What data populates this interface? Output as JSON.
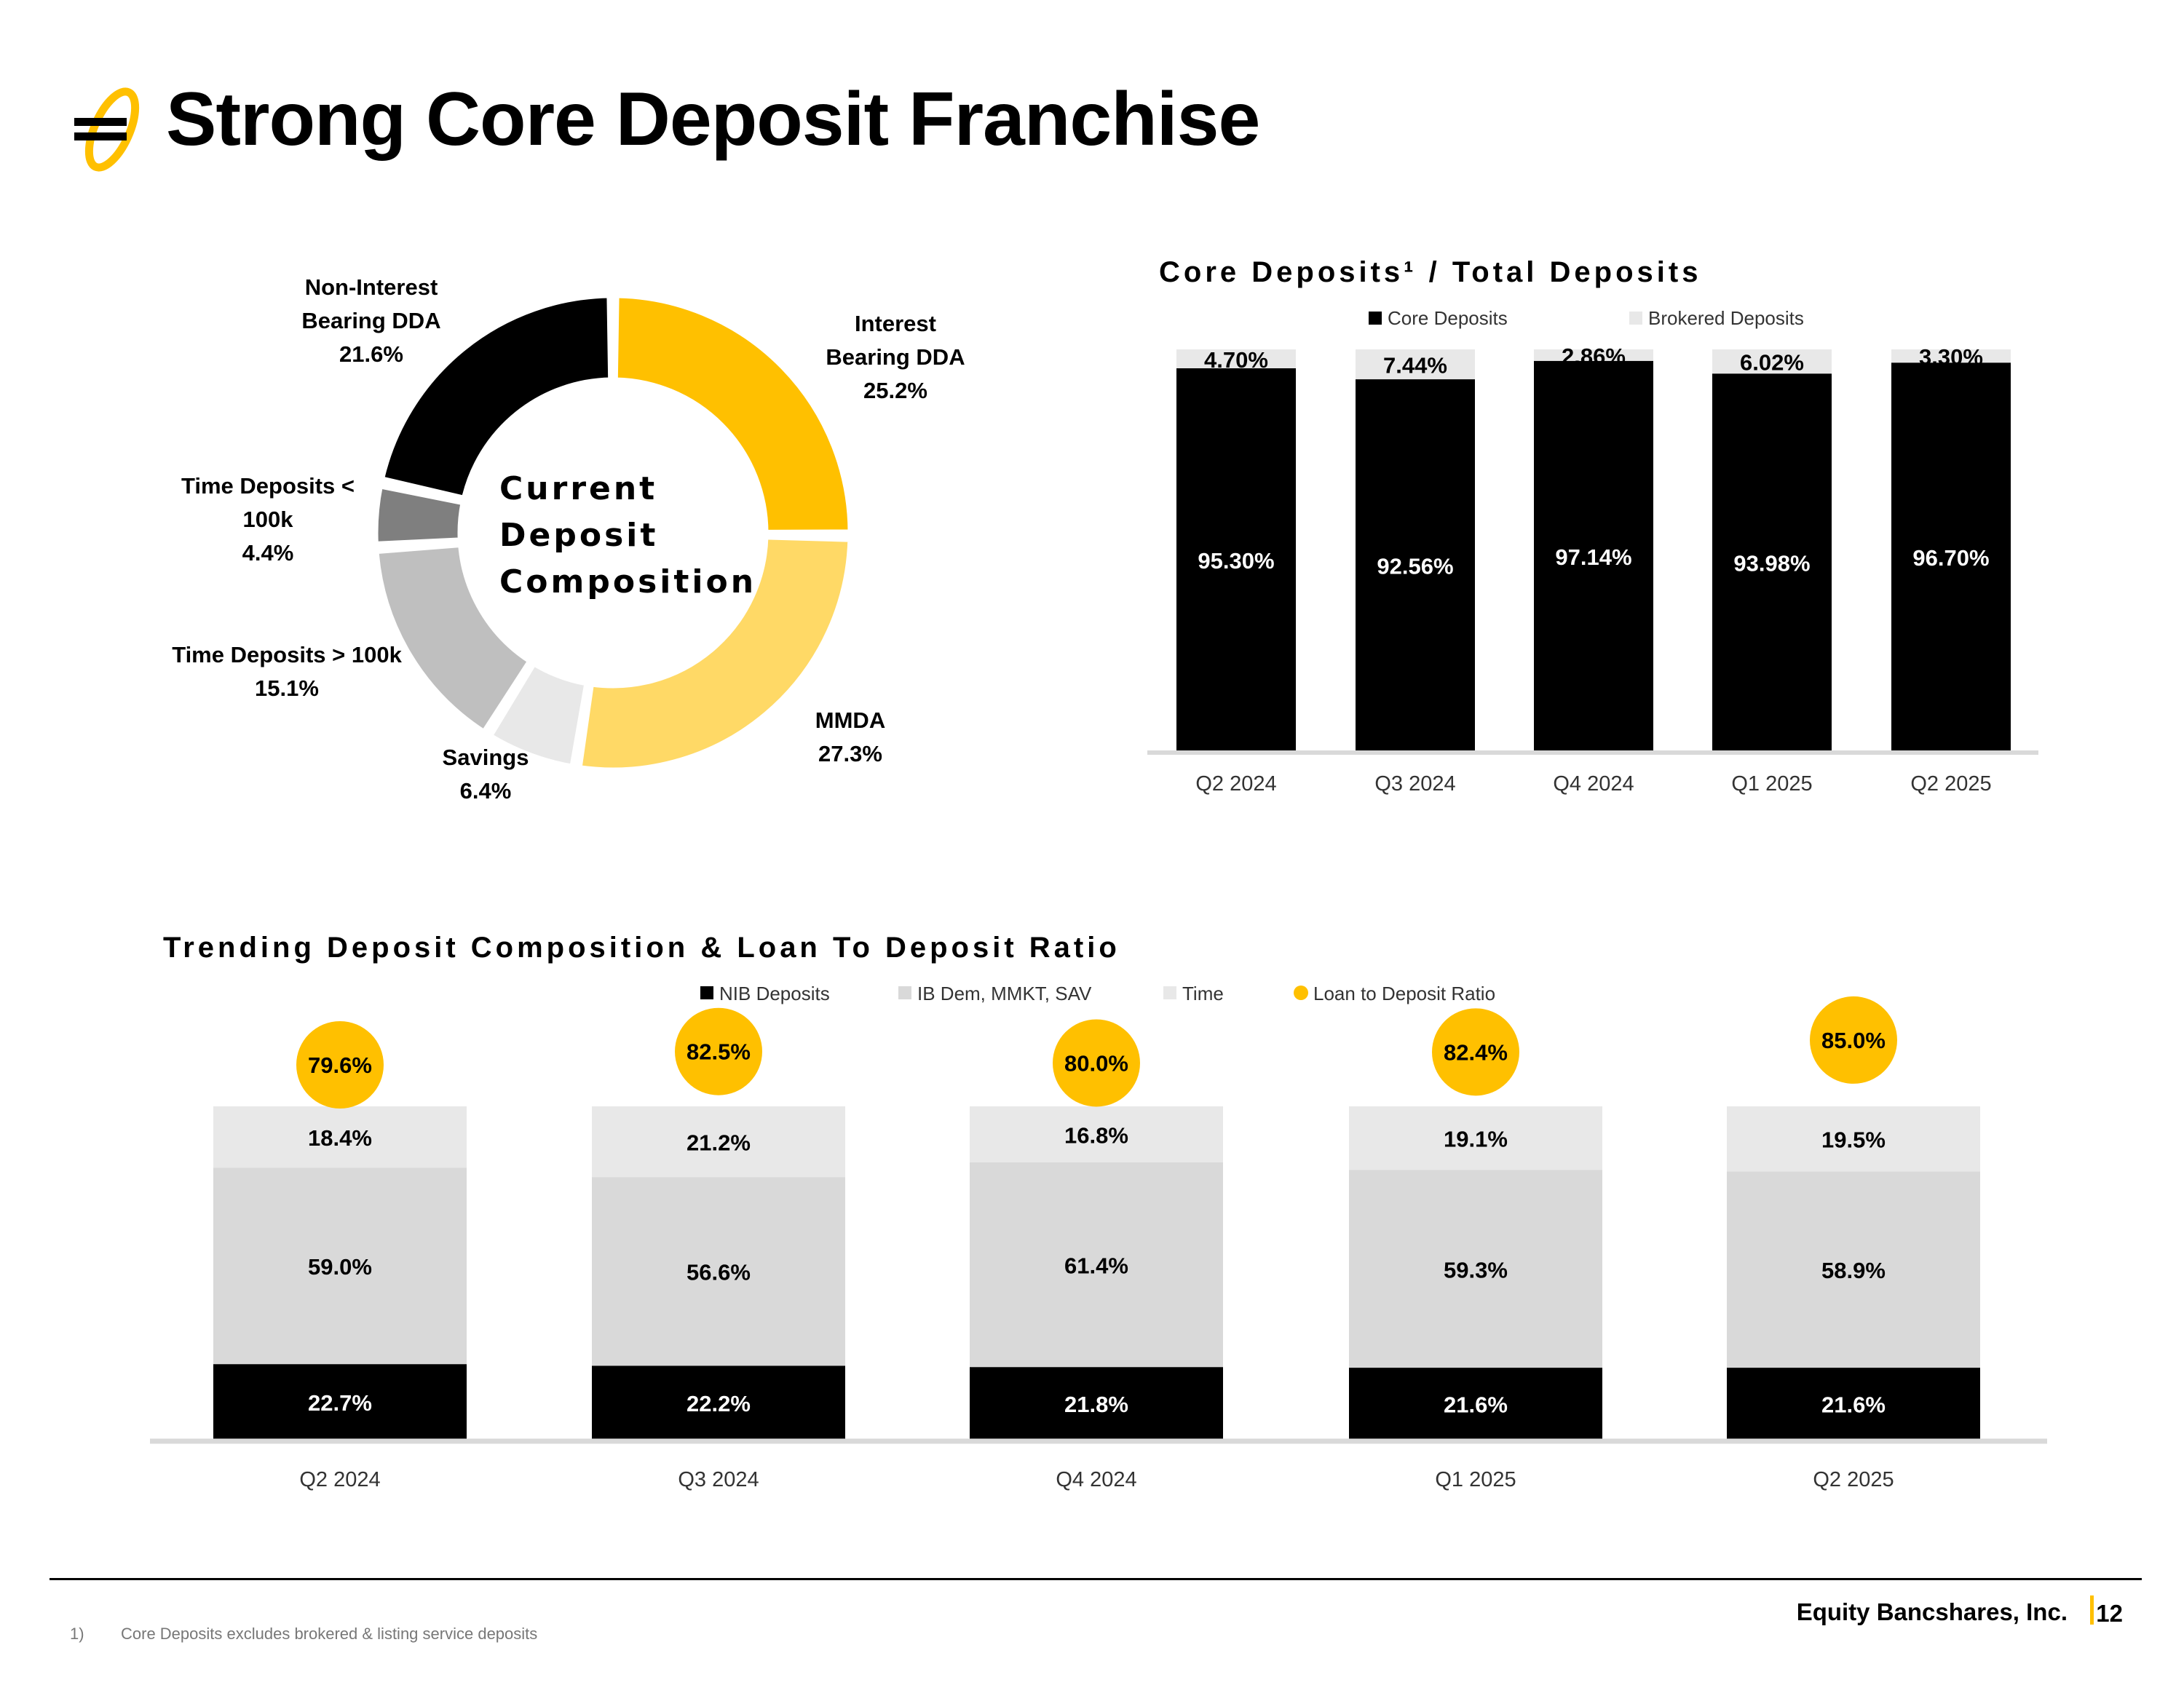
{
  "page": {
    "title": "Strong Core Deposit Franchise"
  },
  "colors": {
    "gold": "#FFC000",
    "light_gold": "#FFD966",
    "black": "#000000",
    "dark_gray": "#7F7F7F",
    "mid_gray": "#BFBFBF",
    "light_gray": "#E8E8E8",
    "ib_gray": "#D9D9D9",
    "axis": "#D9D9D9"
  },
  "donut": {
    "center_lines": [
      "Current",
      "Deposit",
      "Composition"
    ]
  },
  "core_chart": {
    "title": "Core Deposits¹ / Total Deposits"
  },
  "trend_chart": {
    "title": "Trending Deposit Composition & Loan To Deposit Ratio"
  },
  "chart_data": [
    {
      "type": "pie",
      "subtype": "donut",
      "slices": [
        {
          "label_lines": [
            "Interest",
            "Bearing DDA",
            "25.2%"
          ],
          "name": "Interest Bearing DDA",
          "value": 25.2,
          "color": "#FFC000"
        },
        {
          "label_lines": [
            "MMDA",
            "27.3%"
          ],
          "name": "MMDA",
          "value": 27.3,
          "color": "#FFD966"
        },
        {
          "label_lines": [
            "Savings",
            "6.4%"
          ],
          "name": "Savings",
          "value": 6.4,
          "color": "#E8E8E8"
        },
        {
          "label_lines": [
            "Time Deposits > 100k",
            "15.1%"
          ],
          "name": "Time Deposits > 100k",
          "value": 15.1,
          "color": "#BFBFBF"
        },
        {
          "label_lines": [
            "Time Deposits <",
            "100k",
            "4.4%"
          ],
          "name": "Time Deposits < 100k",
          "value": 4.4,
          "color": "#7F7F7F"
        },
        {
          "label_lines": [
            "Non-Interest",
            "Bearing DDA",
            "21.6%"
          ],
          "name": "Non-Interest Bearing DDA",
          "value": 21.6,
          "color": "#000000"
        }
      ]
    },
    {
      "type": "bar",
      "stacked": true,
      "percent_stacked": true,
      "title": "Core Deposits¹ / Total Deposits",
      "categories": [
        "Q2 2024",
        "Q3 2024",
        "Q4 2024",
        "Q1 2025",
        "Q2 2025"
      ],
      "series": [
        {
          "name": "Core Deposits",
          "values": [
            95.3,
            92.56,
            97.14,
            93.98,
            96.7
          ],
          "labels": [
            "95.30%",
            "92.56%",
            "97.14%",
            "93.98%",
            "96.70%"
          ],
          "color": "#000000"
        },
        {
          "name": "Brokered Deposits",
          "values": [
            4.7,
            7.44,
            2.86,
            6.02,
            3.3
          ],
          "labels": [
            "4.70%",
            "7.44%",
            "2.86%",
            "6.02%",
            "3.30%"
          ],
          "color": "#E8E8E8"
        }
      ],
      "legend": "top",
      "grid": false
    },
    {
      "type": "bar",
      "stacked": true,
      "percent_stacked": true,
      "title": "Trending Deposit Composition & Loan To Deposit Ratio",
      "categories": [
        "Q2 2024",
        "Q3 2024",
        "Q4 2024",
        "Q1 2025",
        "Q2 2025"
      ],
      "series": [
        {
          "name": "NIB Deposits",
          "values": [
            22.7,
            22.2,
            21.8,
            21.6,
            21.6
          ],
          "labels": [
            "22.7%",
            "22.2%",
            "21.8%",
            "21.6%",
            "21.6%"
          ],
          "color": "#000000"
        },
        {
          "name": "IB Dem, MMKT, SAV",
          "values": [
            59.0,
            56.6,
            61.4,
            59.3,
            58.9
          ],
          "labels": [
            "59.0%",
            "56.6%",
            "61.4%",
            "59.3%",
            "58.9%"
          ],
          "color": "#D9D9D9"
        },
        {
          "name": "Time",
          "values": [
            18.4,
            21.2,
            16.8,
            19.1,
            19.5
          ],
          "labels": [
            "18.4%",
            "21.2%",
            "16.8%",
            "19.1%",
            "19.5%"
          ],
          "color": "#E8E8E8"
        }
      ],
      "line_series": {
        "name": "Loan to Deposit Ratio",
        "values": [
          79.6,
          82.5,
          80.0,
          82.4,
          85.0
        ],
        "labels": [
          "79.6%",
          "82.5%",
          "80.0%",
          "82.4%",
          "85.0%"
        ],
        "color": "#FFC000"
      },
      "legend": "top",
      "grid": false
    }
  ],
  "footer": {
    "note_number": "1)",
    "note_text": "Core Deposits excludes brokered & listing service deposits",
    "company": "Equity Bancshares, Inc.",
    "page_number": "12"
  }
}
